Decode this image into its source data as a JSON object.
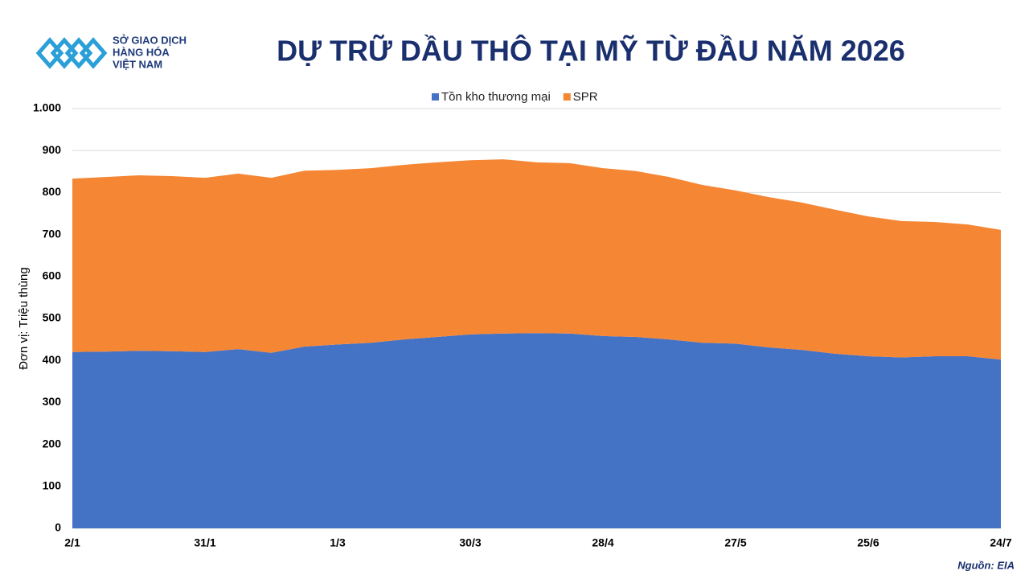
{
  "logo": {
    "lines": [
      "SỞ GIAO DỊCH",
      "HÀNG HÓA",
      "VIỆT NAM"
    ]
  },
  "chart_data": {
    "type": "stacked-area",
    "title": "DỰ TRỮ DẦU THÔ TẠI MỸ TỪ ĐẦU NĂM 2026",
    "y_label": "Đơn vị: Triệu thùng",
    "source": "Nguồn: EIA",
    "categories": [
      "2/1",
      null,
      null,
      null,
      "31/1",
      null,
      null,
      null,
      "1/3",
      null,
      null,
      null,
      "30/3",
      null,
      null,
      null,
      "28/4",
      null,
      null,
      null,
      "27/5",
      null,
      null,
      null,
      "25/6",
      null,
      null,
      null,
      "24/7"
    ],
    "series": [
      {
        "name": "Tồn kho thương mại",
        "color": "#4472c4",
        "values": [
          420,
          421,
          423,
          422,
          420,
          427,
          418,
          433,
          438,
          442,
          450,
          456,
          462,
          464,
          465,
          464,
          458,
          456,
          450,
          442,
          440,
          431,
          425,
          416,
          410,
          407,
          410,
          410,
          402
        ]
      },
      {
        "name": "SPR",
        "color": "#f58634",
        "values": [
          413,
          416,
          418,
          417,
          415,
          418,
          417,
          419,
          416,
          416,
          416,
          416,
          415,
          415,
          407,
          406,
          400,
          395,
          387,
          376,
          365,
          358,
          351,
          343,
          333,
          325,
          320,
          314,
          309
        ]
      }
    ],
    "ylim": [
      0,
      1000
    ],
    "yticks": [
      0,
      100,
      200,
      300,
      400,
      500,
      600,
      700,
      800,
      900,
      {
        "value": 1000,
        "label": "1.000"
      }
    ],
    "grid": true,
    "legend": "top"
  }
}
